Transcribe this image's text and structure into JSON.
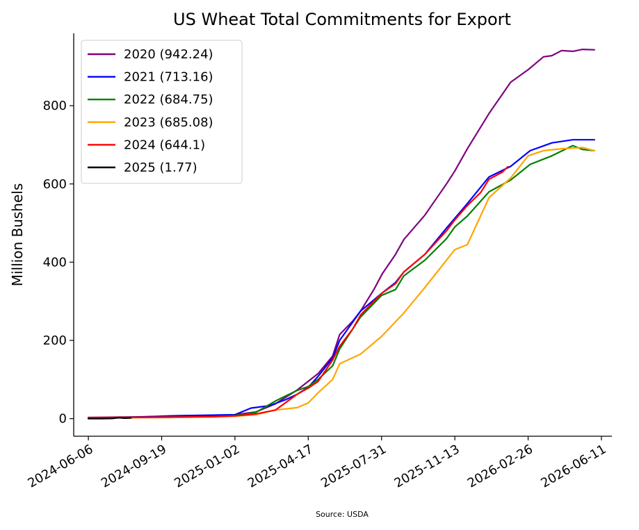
{
  "chart_data": {
    "type": "line",
    "title": "US Wheat Total Commitments for Export",
    "xlabel": "",
    "ylabel": "Million Bushels",
    "source": "Source: USDA",
    "xlim": [
      "2024-05-16",
      "2026-06-26"
    ],
    "ylim": [
      -45,
      985
    ],
    "x_ticks": [
      "2024-06-06",
      "2024-09-19",
      "2025-01-02",
      "2025-04-17",
      "2025-07-31",
      "2025-11-13",
      "2026-02-26",
      "2026-06-11"
    ],
    "y_ticks": [
      0,
      200,
      400,
      600,
      800
    ],
    "grid": false,
    "legend_position": "top-left",
    "series": [
      {
        "name": "2020 (942.24)",
        "color": "#800080",
        "points": [
          [
            "2024-06-06",
            3
          ],
          [
            "2024-08-01",
            4
          ],
          [
            "2024-10-01",
            6
          ],
          [
            "2024-12-01",
            8
          ],
          [
            "2025-01-02",
            10
          ],
          [
            "2025-02-01",
            17
          ],
          [
            "2025-03-01",
            38
          ],
          [
            "2025-04-01",
            73
          ],
          [
            "2025-05-01",
            115
          ],
          [
            "2025-05-22",
            160
          ],
          [
            "2025-06-01",
            215
          ],
          [
            "2025-06-20",
            250
          ],
          [
            "2025-07-01",
            275
          ],
          [
            "2025-07-20",
            330
          ],
          [
            "2025-08-01",
            370
          ],
          [
            "2025-08-20",
            420
          ],
          [
            "2025-09-01",
            458
          ],
          [
            "2025-10-01",
            520
          ],
          [
            "2025-11-01",
            600
          ],
          [
            "2025-11-13",
            633
          ],
          [
            "2025-12-01",
            690
          ],
          [
            "2026-01-01",
            780
          ],
          [
            "2026-02-01",
            860
          ],
          [
            "2026-02-26",
            892
          ],
          [
            "2026-03-20",
            925
          ],
          [
            "2026-04-01",
            928
          ],
          [
            "2026-04-15",
            941
          ],
          [
            "2026-05-01",
            939
          ],
          [
            "2026-05-15",
            944
          ],
          [
            "2026-06-01",
            943
          ]
        ]
      },
      {
        "name": "2021 (713.16)",
        "color": "#0000ff",
        "points": [
          [
            "2024-06-06",
            2
          ],
          [
            "2024-08-01",
            3
          ],
          [
            "2024-10-01",
            7
          ],
          [
            "2024-12-01",
            9
          ],
          [
            "2025-01-02",
            10
          ],
          [
            "2025-01-25",
            27
          ],
          [
            "2025-02-20",
            33
          ],
          [
            "2025-03-15",
            48
          ],
          [
            "2025-04-01",
            62
          ],
          [
            "2025-04-17",
            80
          ],
          [
            "2025-05-01",
            108
          ],
          [
            "2025-05-22",
            155
          ],
          [
            "2025-06-01",
            200
          ],
          [
            "2025-07-01",
            275
          ],
          [
            "2025-07-31",
            320
          ],
          [
            "2025-08-20",
            348
          ],
          [
            "2025-09-01",
            375
          ],
          [
            "2025-10-01",
            420
          ],
          [
            "2025-11-01",
            487
          ],
          [
            "2025-12-01",
            550
          ],
          [
            "2026-01-01",
            618
          ],
          [
            "2026-02-01",
            645
          ],
          [
            "2026-03-01",
            685
          ],
          [
            "2026-04-01",
            705
          ],
          [
            "2026-05-01",
            713
          ],
          [
            "2026-06-01",
            713
          ]
        ]
      },
      {
        "name": "2022 (684.75)",
        "color": "#008000",
        "points": [
          [
            "2024-06-06",
            2
          ],
          [
            "2024-08-01",
            3
          ],
          [
            "2024-10-01",
            3
          ],
          [
            "2024-12-01",
            5
          ],
          [
            "2025-01-02",
            8
          ],
          [
            "2025-02-01",
            16
          ],
          [
            "2025-03-01",
            45
          ],
          [
            "2025-04-01",
            72
          ],
          [
            "2025-04-17",
            82
          ],
          [
            "2025-05-01",
            100
          ],
          [
            "2025-05-22",
            135
          ],
          [
            "2025-06-01",
            178
          ],
          [
            "2025-07-01",
            260
          ],
          [
            "2025-07-31",
            315
          ],
          [
            "2025-08-20",
            330
          ],
          [
            "2025-09-01",
            365
          ],
          [
            "2025-10-01",
            405
          ],
          [
            "2025-11-01",
            460
          ],
          [
            "2025-11-13",
            490
          ],
          [
            "2025-12-01",
            518
          ],
          [
            "2026-01-01",
            580
          ],
          [
            "2026-02-01",
            610
          ],
          [
            "2026-03-01",
            650
          ],
          [
            "2026-04-01",
            672
          ],
          [
            "2026-05-01",
            698
          ],
          [
            "2026-05-15",
            688
          ],
          [
            "2026-06-01",
            685
          ]
        ]
      },
      {
        "name": "2023 (685.08)",
        "color": "#ffa500",
        "points": [
          [
            "2024-06-06",
            1
          ],
          [
            "2024-08-01",
            2
          ],
          [
            "2024-10-01",
            3
          ],
          [
            "2024-12-01",
            4
          ],
          [
            "2025-01-02",
            6
          ],
          [
            "2025-02-01",
            10
          ],
          [
            "2025-03-01",
            22
          ],
          [
            "2025-04-01",
            28
          ],
          [
            "2025-04-17",
            40
          ],
          [
            "2025-05-01",
            66
          ],
          [
            "2025-05-22",
            100
          ],
          [
            "2025-06-01",
            140
          ],
          [
            "2025-07-01",
            165
          ],
          [
            "2025-07-31",
            210
          ],
          [
            "2025-09-01",
            270
          ],
          [
            "2025-10-01",
            335
          ],
          [
            "2025-11-01",
            405
          ],
          [
            "2025-11-13",
            432
          ],
          [
            "2025-12-01",
            445
          ],
          [
            "2026-01-01",
            565
          ],
          [
            "2026-02-01",
            615
          ],
          [
            "2026-02-26",
            672
          ],
          [
            "2026-03-20",
            685
          ],
          [
            "2026-04-15",
            690
          ],
          [
            "2026-05-15",
            693
          ],
          [
            "2026-06-01",
            685
          ]
        ]
      },
      {
        "name": "2024 (644.1)",
        "color": "#ff0000",
        "points": [
          [
            "2024-06-06",
            2
          ],
          [
            "2024-08-01",
            3
          ],
          [
            "2024-10-01",
            4
          ],
          [
            "2024-12-01",
            5
          ],
          [
            "2025-01-02",
            7
          ],
          [
            "2025-02-01",
            12
          ],
          [
            "2025-03-01",
            22
          ],
          [
            "2025-04-01",
            62
          ],
          [
            "2025-04-17",
            78
          ],
          [
            "2025-05-01",
            95
          ],
          [
            "2025-05-22",
            150
          ],
          [
            "2025-06-01",
            185
          ],
          [
            "2025-06-20",
            230
          ],
          [
            "2025-07-01",
            265
          ],
          [
            "2025-07-31",
            320
          ],
          [
            "2025-08-20",
            345
          ],
          [
            "2025-09-01",
            375
          ],
          [
            "2025-10-01",
            420
          ],
          [
            "2025-11-01",
            480
          ],
          [
            "2025-11-13",
            508
          ],
          [
            "2025-12-01",
            545
          ],
          [
            "2025-12-20",
            578
          ],
          [
            "2026-01-01",
            612
          ],
          [
            "2026-01-20",
            630
          ],
          [
            "2026-01-28",
            644
          ]
        ]
      },
      {
        "name": "2025 (1.77)",
        "color": "#000000",
        "points": [
          [
            "2024-06-06",
            0
          ],
          [
            "2024-06-25",
            0
          ],
          [
            "2024-07-10",
            0.5
          ],
          [
            "2024-07-20",
            2.5
          ],
          [
            "2024-07-28",
            1.2
          ],
          [
            "2024-08-06",
            1.77
          ]
        ]
      }
    ]
  }
}
